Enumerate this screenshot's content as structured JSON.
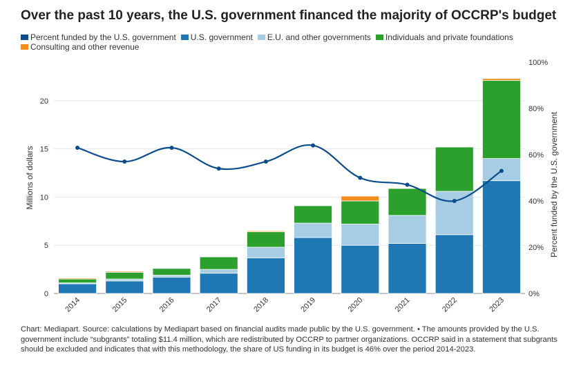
{
  "title": "Over the past 10 years, the U.S. government financed the majority of OCCRP's budget",
  "legend": [
    {
      "label": "Percent funded by the U.S. government",
      "color": "#0b4c8c"
    },
    {
      "label": "U.S. government",
      "color": "#1f77b4"
    },
    {
      "label": "E.U. and other governments",
      "color": "#a6cde4"
    },
    {
      "label": "Individuals and private foundations",
      "color": "#2ca02c"
    },
    {
      "label": "Consulting and other revenue",
      "color": "#f28e1c"
    }
  ],
  "chart_data": {
    "type": "bar",
    "stacked": true,
    "categories": [
      "2014",
      "2015",
      "2016",
      "2017",
      "2018",
      "2019",
      "2020",
      "2021",
      "2022",
      "2023"
    ],
    "series": [
      {
        "name": "U.S. government",
        "color": "#1f77b4",
        "values": [
          1.0,
          1.3,
          1.7,
          2.1,
          3.7,
          5.8,
          5.0,
          5.2,
          6.1,
          11.7
        ]
      },
      {
        "name": "E.U. and other governments",
        "color": "#a6cde4",
        "values": [
          0.1,
          0.2,
          0.2,
          0.4,
          1.1,
          1.5,
          2.2,
          2.9,
          4.5,
          2.3
        ]
      },
      {
        "name": "Individuals and private foundations",
        "color": "#2ca02c",
        "values": [
          0.4,
          0.7,
          0.7,
          1.3,
          1.6,
          1.8,
          2.4,
          2.8,
          4.6,
          8.1
        ]
      },
      {
        "name": "Consulting and other revenue",
        "color": "#f28e1c",
        "values": [
          0.1,
          0.1,
          0.05,
          0.05,
          0.1,
          0.0,
          0.5,
          0.05,
          0.05,
          0.2
        ]
      }
    ],
    "line": {
      "name": "Percent funded by the U.S. government",
      "color": "#0b4c8c",
      "values": [
        63,
        57,
        63,
        54,
        57,
        64,
        50,
        47,
        40,
        53
      ]
    },
    "ylabel": "Millions of dollars",
    "ylim": [
      0,
      24
    ],
    "yticks": [
      0,
      5,
      10,
      15,
      20
    ],
    "y2label": "Percent funded by the U.S. government",
    "y2lim": [
      0,
      100
    ],
    "y2ticks": [
      "0%",
      "20%",
      "40%",
      "60%",
      "80%",
      "100%"
    ],
    "y2tick_values": [
      0,
      20,
      40,
      60,
      80,
      100
    ],
    "grid": true
  },
  "footer": "Chart: Mediapart. Source: calculations by Mediapart based on financial audits made public by the U.S. government. • The amounts provided by the U.S. government include “subgrants” totaling $11.4 million, which are redistributed by OCCRP to partner organizations. OCCRP said in a statement that subgrants should be excluded and indicates that with this methodology, the share of US funding in its budget is 46% over the period 2014-2023."
}
